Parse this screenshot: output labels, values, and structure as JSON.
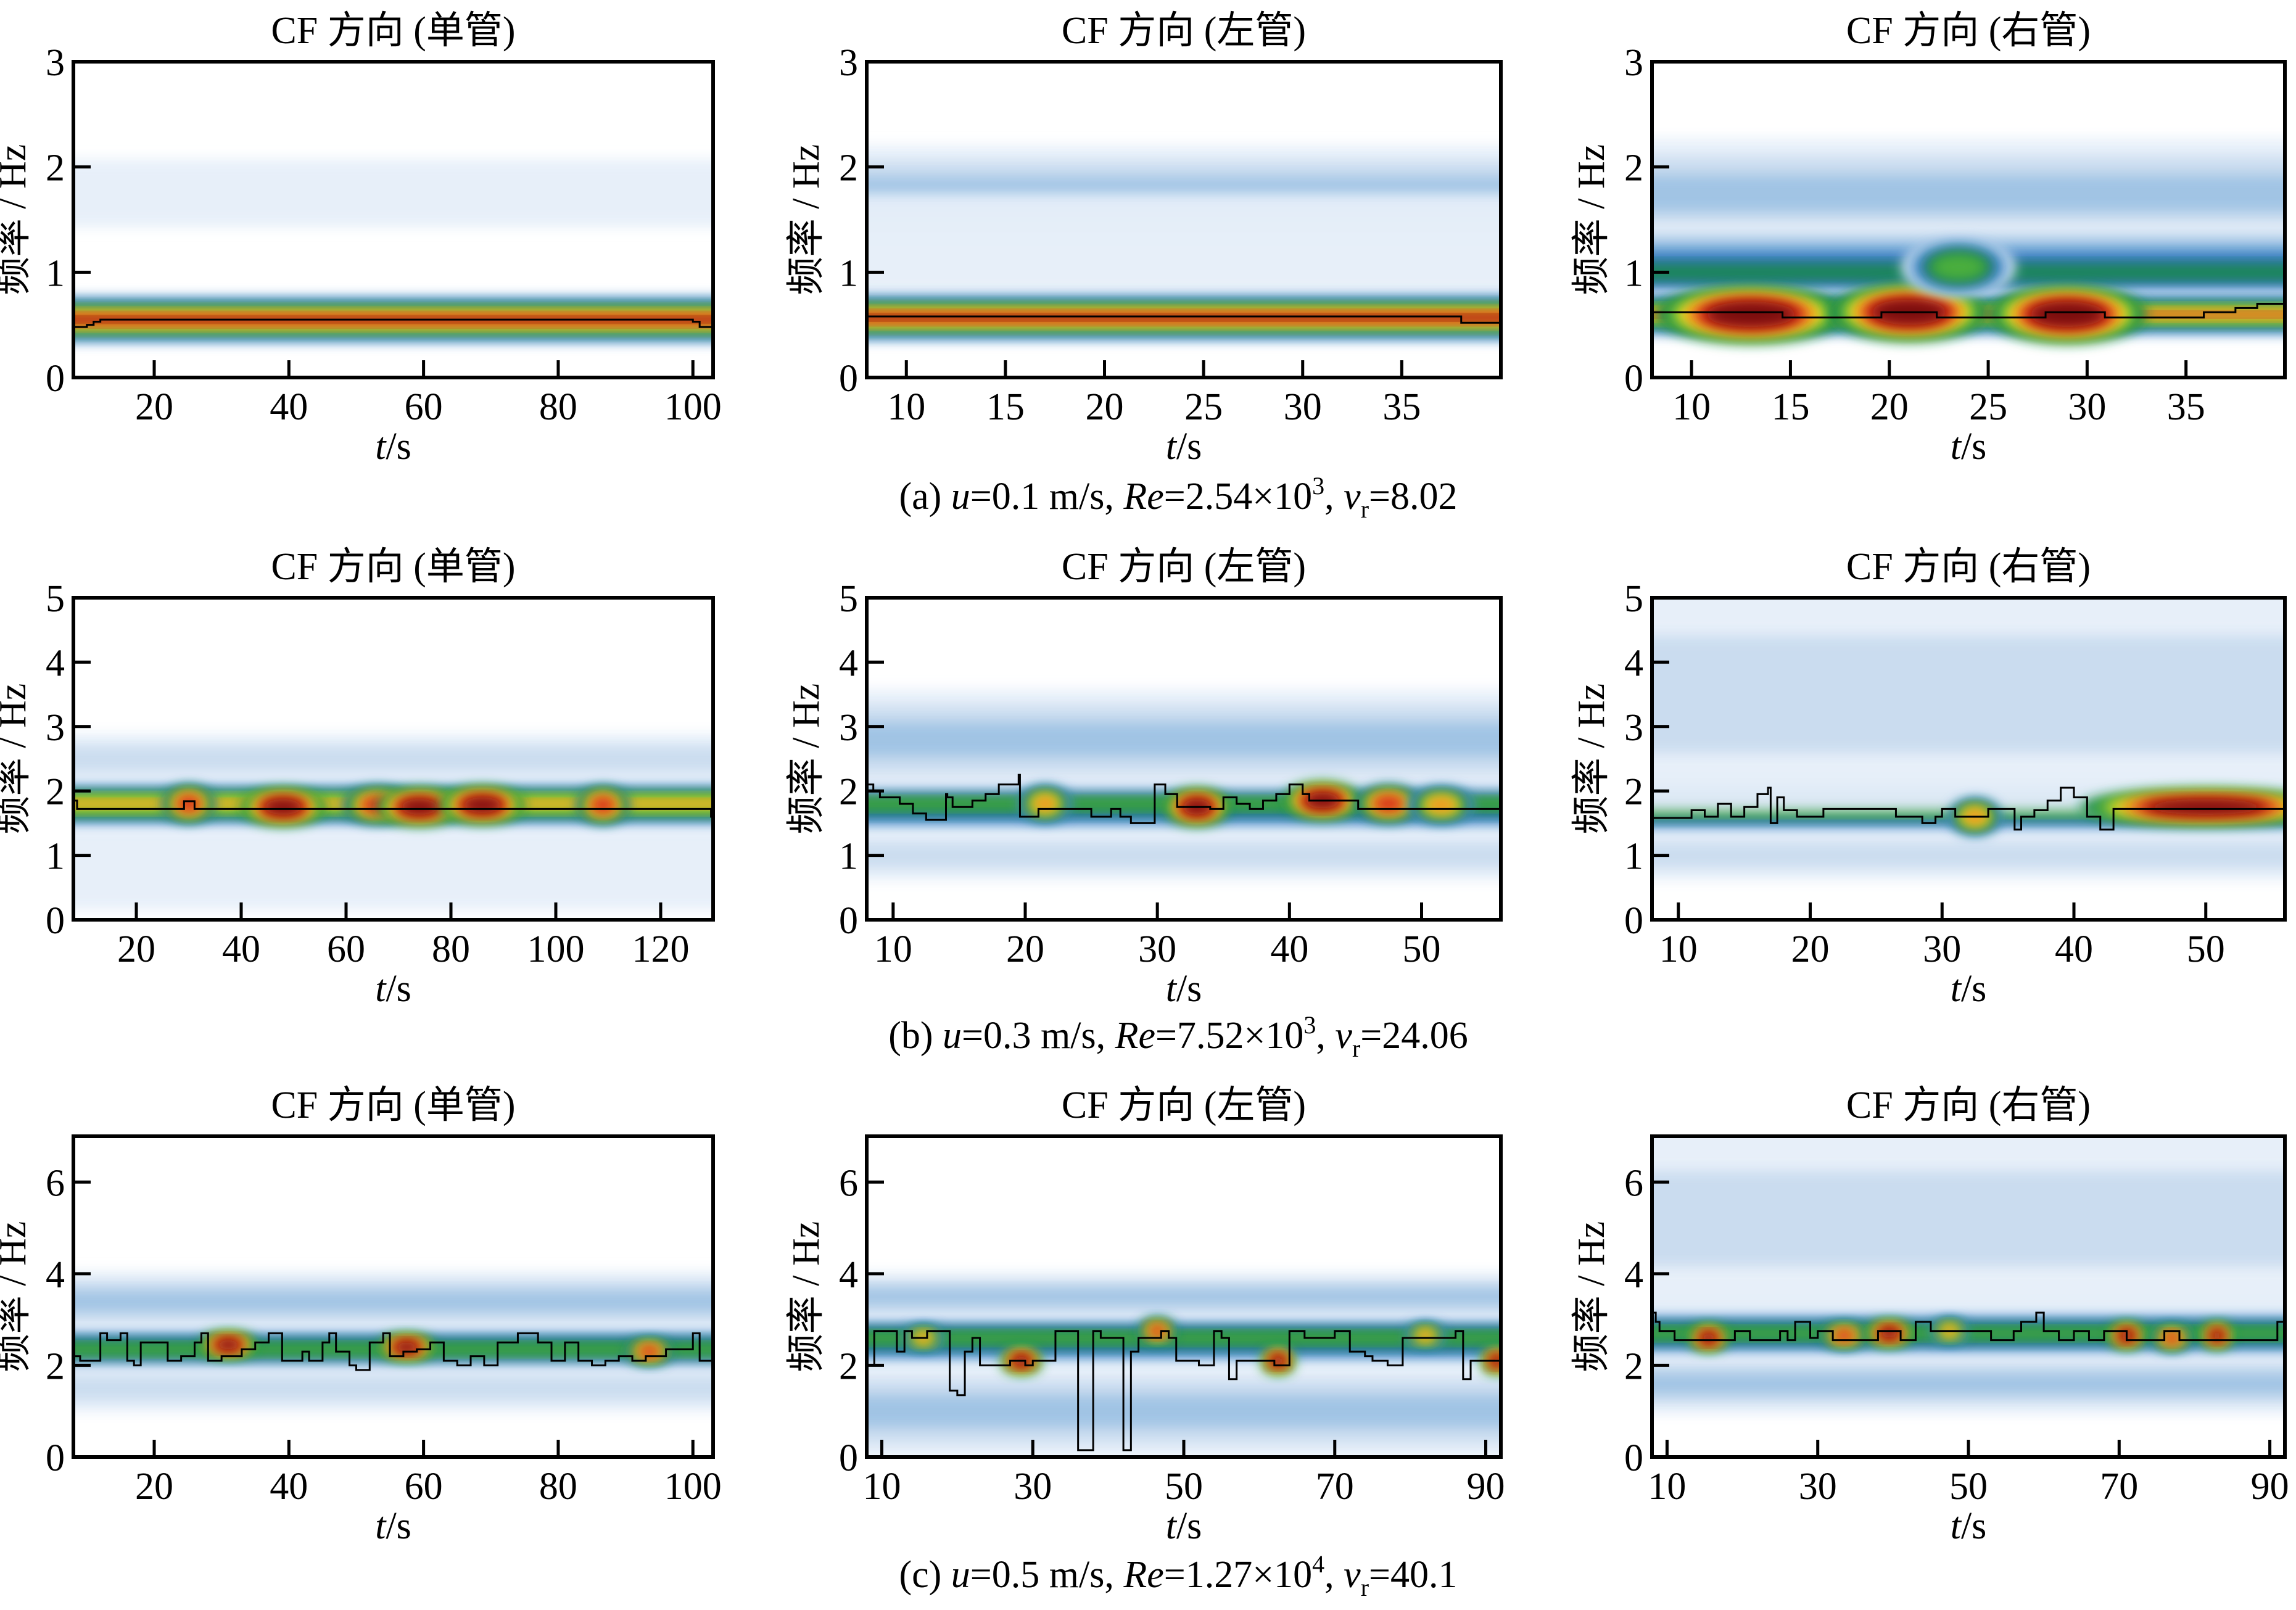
{
  "figure": {
    "rows": [
      {
        "caption": {
          "prefix": "(a) ",
          "u_label": "u",
          "u_value": "=0.1 m/s, ",
          "re_label": "Re",
          "re_value": "=2.54×10",
          "re_exp": "3",
          "sep": ", ",
          "vr_label": "v",
          "vr_sub": "r",
          "vr_value": "=8.02"
        }
      },
      {
        "caption": {
          "prefix": "(b) ",
          "u_label": "u",
          "u_value": "=0.3 m/s, ",
          "re_label": "Re",
          "re_value": "=7.52×10",
          "re_exp": "3",
          "sep": ", ",
          "vr_label": "v",
          "vr_sub": "r",
          "vr_value": "=24.06"
        }
      },
      {
        "caption": {
          "prefix": "(c) ",
          "u_label": "u",
          "u_value": "=0.5 m/s, ",
          "re_label": "Re",
          "re_value": "=1.27×10",
          "re_exp": "4",
          "sep": ", ",
          "vr_label": "v",
          "vr_sub": "r",
          "vr_value": "=40.1"
        }
      }
    ],
    "colormap": [
      "#ffffff",
      "#e6eff9",
      "#c9dcef",
      "#9fc3e4",
      "#5b9ad0",
      "#2a6fb4",
      "#1e8a4a",
      "#4caf3c",
      "#e8e020",
      "#f09020",
      "#d42a1a",
      "#7a1010"
    ],
    "ridge_color": "#000000"
  },
  "chart_data": [
    {
      "type": "heatmap",
      "row": 0,
      "col": 0,
      "title": "CF 方向 (单管)",
      "xlabel_italic": "t",
      "xlabel_rest": "/s",
      "ylabel": "频率 / Hz",
      "xlim": [
        8,
        103
      ],
      "ylim": [
        0,
        3
      ],
      "xticks": [
        20,
        40,
        60,
        80,
        100
      ],
      "yticks": [
        0,
        1,
        2,
        3
      ],
      "bands": [
        {
          "f": 1.75,
          "width": 0.25,
          "intensity": 0.12
        },
        {
          "f": 0.55,
          "width": 0.18,
          "intensity": 1.0
        }
      ],
      "hotspots": [],
      "ridge": {
        "t": [
          8,
          10,
          11,
          12,
          100,
          101,
          103
        ],
        "f": [
          0.48,
          0.5,
          0.53,
          0.55,
          0.53,
          0.48,
          0.48
        ]
      }
    },
    {
      "type": "heatmap",
      "row": 0,
      "col": 1,
      "title": "CF 方向 (左管)",
      "xlabel_italic": "t",
      "xlabel_rest": "/s",
      "ylabel": "频率 / Hz",
      "xlim": [
        8,
        40
      ],
      "ylim": [
        0,
        3
      ],
      "xticks": [
        10,
        15,
        20,
        25,
        30,
        35
      ],
      "yticks": [
        0,
        1,
        2,
        3
      ],
      "bands": [
        {
          "f": 1.75,
          "width": 0.35,
          "intensity": 0.3
        },
        {
          "f": 1.1,
          "width": 0.5,
          "intensity": 0.12
        },
        {
          "f": 0.57,
          "width": 0.18,
          "intensity": 1.0
        }
      ],
      "hotspots": [],
      "ridge": {
        "t": [
          8,
          37.9,
          38,
          40
        ],
        "f": [
          0.58,
          0.58,
          0.52,
          0.52
        ]
      }
    },
    {
      "type": "heatmap",
      "row": 0,
      "col": 2,
      "title": "CF 方向 (右管)",
      "xlabel_italic": "t",
      "xlabel_rest": "/s",
      "ylabel": "频率 / Hz",
      "xlim": [
        8,
        40
      ],
      "ylim": [
        0,
        3
      ],
      "xticks": [
        10,
        15,
        20,
        25,
        30,
        35
      ],
      "yticks": [
        0,
        1,
        2,
        3
      ],
      "bands": [
        {
          "f": 1.75,
          "width": 0.4,
          "intensity": 0.3
        },
        {
          "f": 1.0,
          "width": 0.35,
          "intensity": 0.5
        },
        {
          "f": 0.6,
          "width": 0.16,
          "intensity": 0.9
        }
      ],
      "hotspots": [
        {
          "t": 13,
          "f": 0.6,
          "r": 3,
          "intensity": 1.0
        },
        {
          "t": 21,
          "f": 0.62,
          "r": 2.5,
          "intensity": 1.0
        },
        {
          "t": 29,
          "f": 0.6,
          "r": 2.5,
          "intensity": 1.0
        },
        {
          "t": 23.5,
          "f": 1.05,
          "r": 1.8,
          "intensity": 0.62
        }
      ],
      "ridge": {
        "t": [
          8,
          14.5,
          14.6,
          19.5,
          19.6,
          22.3,
          22.4,
          27.8,
          27.9,
          30.8,
          30.9,
          35.8,
          35.9,
          37.4,
          37.5,
          38.5,
          38.6,
          40
        ],
        "f": [
          0.62,
          0.62,
          0.57,
          0.57,
          0.62,
          0.62,
          0.57,
          0.57,
          0.62,
          0.62,
          0.57,
          0.57,
          0.62,
          0.62,
          0.66,
          0.66,
          0.7,
          0.7
        ]
      }
    },
    {
      "type": "heatmap",
      "row": 1,
      "col": 0,
      "title": "CF 方向 (单管)",
      "xlabel_italic": "t",
      "xlabel_rest": "/s",
      "ylabel": "频率 / Hz",
      "xlim": [
        8,
        130
      ],
      "ylim": [
        0,
        5
      ],
      "xticks": [
        20,
        40,
        60,
        80,
        100,
        120
      ],
      "yticks": [
        0,
        1,
        2,
        3,
        4,
        5
      ],
      "bands": [
        {
          "f": 1.8,
          "width": 0.35,
          "intensity": 0.78
        },
        {
          "f": 2.5,
          "width": 0.3,
          "intensity": 0.15
        },
        {
          "f": 0.8,
          "width": 0.5,
          "intensity": 0.1
        }
      ],
      "hotspots": [
        {
          "t": 30,
          "f": 1.8,
          "r": 3,
          "intensity": 0.95
        },
        {
          "t": 48,
          "f": 1.75,
          "r": 5,
          "intensity": 1.0
        },
        {
          "t": 66,
          "f": 1.78,
          "r": 4,
          "intensity": 0.95
        },
        {
          "t": 74,
          "f": 1.75,
          "r": 5,
          "intensity": 1.0
        },
        {
          "t": 86,
          "f": 1.78,
          "r": 5,
          "intensity": 1.0
        },
        {
          "t": 109,
          "f": 1.78,
          "r": 3,
          "intensity": 0.95
        }
      ],
      "ridge": {
        "t": [
          8,
          8.6,
          8.7,
          29,
          29.1,
          31,
          31.1,
          129.5,
          129.6,
          130
        ],
        "f": [
          1.85,
          1.85,
          1.72,
          1.72,
          1.84,
          1.84,
          1.72,
          1.72,
          1.6,
          1.6
        ]
      }
    },
    {
      "type": "heatmap",
      "row": 1,
      "col": 1,
      "title": "CF 方向 (左管)",
      "xlabel_italic": "t",
      "xlabel_rest": "/s",
      "ylabel": "频率 / Hz",
      "xlim": [
        8,
        56
      ],
      "ylim": [
        0,
        5
      ],
      "xticks": [
        10,
        20,
        30,
        40,
        50
      ],
      "yticks": [
        0,
        1,
        2,
        3,
        4,
        5
      ],
      "bands": [
        {
          "f": 1.8,
          "width": 0.4,
          "intensity": 0.65
        },
        {
          "f": 2.8,
          "width": 0.6,
          "intensity": 0.3
        },
        {
          "f": 1.0,
          "width": 0.3,
          "intensity": 0.2
        }
      ],
      "hotspots": [
        {
          "t": 33,
          "f": 1.75,
          "r": 1.5,
          "intensity": 1.0
        },
        {
          "t": 42.5,
          "f": 1.85,
          "r": 1.8,
          "intensity": 1.0
        },
        {
          "t": 47.5,
          "f": 1.8,
          "r": 1.5,
          "intensity": 0.9
        },
        {
          "t": 21.5,
          "f": 1.8,
          "r": 1.2,
          "intensity": 0.8
        },
        {
          "t": 51.5,
          "f": 1.78,
          "r": 1.5,
          "intensity": 0.78
        }
      ],
      "ridge": {
        "t": [
          8,
          8.5,
          9,
          10.5,
          11.5,
          12.5,
          14,
          14.1,
          14.5,
          16,
          17,
          18,
          19.5,
          19.6,
          21,
          25,
          26.5,
          27.2,
          28,
          29,
          29.8,
          30.6,
          31.5,
          34,
          35,
          36,
          37,
          38,
          39,
          40,
          41,
          41.5,
          45,
          45.2,
          55.5,
          56
        ],
        "f": [
          2.1,
          2.0,
          1.9,
          1.8,
          1.65,
          1.55,
          1.95,
          1.9,
          1.75,
          1.85,
          1.95,
          2.1,
          2.25,
          1.6,
          1.72,
          1.6,
          1.72,
          1.6,
          1.5,
          1.5,
          2.1,
          1.95,
          1.75,
          1.72,
          1.9,
          1.8,
          1.72,
          1.85,
          1.95,
          2.1,
          1.95,
          1.85,
          1.85,
          1.72,
          1.72,
          1.6
        ]
      }
    },
    {
      "type": "heatmap",
      "row": 1,
      "col": 2,
      "title": "CF 方向 (右管)",
      "xlabel_italic": "t",
      "xlabel_rest": "/s",
      "ylabel": "频率 / Hz",
      "xlim": [
        8,
        56
      ],
      "ylim": [
        0,
        5
      ],
      "xticks": [
        10,
        20,
        30,
        40,
        50
      ],
      "yticks": [
        0,
        1,
        2,
        3,
        4,
        5
      ],
      "bands": [
        {
          "f": 1.7,
          "width": 0.38,
          "intensity": 0.65
        },
        {
          "f": 3.5,
          "width": 1.4,
          "intensity": 0.2
        },
        {
          "f": 1.0,
          "width": 0.3,
          "intensity": 0.2
        }
      ],
      "hotspots": [
        {
          "t": 50,
          "f": 1.75,
          "r": 6,
          "intensity": 1.0
        },
        {
          "t": 32.5,
          "f": 1.6,
          "r": 1.2,
          "intensity": 0.8
        }
      ],
      "ridge": {
        "t": [
          8,
          11,
          12,
          13,
          14,
          15,
          16,
          16.8,
          17,
          17.5,
          18,
          19,
          21,
          26.5,
          28.5,
          29.5,
          30,
          31,
          33.5,
          35.5,
          36,
          37,
          38,
          39,
          40,
          41,
          42,
          43,
          56
        ],
        "f": [
          1.58,
          1.7,
          1.6,
          1.8,
          1.6,
          1.75,
          1.95,
          2.05,
          1.5,
          1.9,
          1.7,
          1.6,
          1.72,
          1.6,
          1.5,
          1.6,
          1.72,
          1.6,
          1.72,
          1.4,
          1.6,
          1.7,
          1.85,
          2.05,
          1.9,
          1.6,
          1.4,
          1.72,
          1.72
        ]
      }
    },
    {
      "type": "heatmap",
      "row": 2,
      "col": 0,
      "title": "CF 方向 (单管)",
      "xlabel_italic": "t",
      "xlabel_rest": "/s",
      "ylabel": "频率 / Hz",
      "xlim": [
        8,
        103
      ],
      "ylim": [
        0,
        7
      ],
      "xticks": [
        20,
        40,
        60,
        80,
        100
      ],
      "yticks": [
        0,
        2,
        4,
        6
      ],
      "bands": [
        {
          "f": 2.35,
          "width": 0.55,
          "intensity": 0.6
        },
        {
          "f": 3.4,
          "width": 0.5,
          "intensity": 0.3
        },
        {
          "f": 1.5,
          "width": 0.4,
          "intensity": 0.2
        }
      ],
      "hotspots": [
        {
          "t": 31,
          "f": 2.45,
          "r": 2.5,
          "intensity": 1.0
        },
        {
          "t": 57.5,
          "f": 2.4,
          "r": 2.5,
          "intensity": 1.0
        },
        {
          "t": 93.5,
          "f": 2.3,
          "r": 2,
          "intensity": 0.95
        }
      ],
      "ridge": {
        "t": [
          8,
          9,
          12,
          13,
          15,
          16,
          17,
          18,
          22,
          24,
          26,
          27,
          28,
          30,
          33,
          35,
          37,
          39,
          42,
          43,
          45,
          46,
          47,
          49,
          50,
          52,
          54,
          55,
          57,
          59,
          61,
          63,
          65,
          67,
          69,
          71,
          74,
          77,
          79,
          81,
          83,
          85,
          87,
          89,
          91,
          93,
          96,
          100,
          101,
          103
        ],
        "f": [
          2.2,
          2.1,
          2.7,
          2.55,
          2.7,
          2.1,
          2.0,
          2.5,
          2.1,
          2.2,
          2.5,
          2.7,
          2.1,
          2.2,
          2.35,
          2.5,
          2.7,
          2.1,
          2.3,
          2.1,
          2.5,
          2.7,
          2.3,
          2.0,
          1.9,
          2.5,
          2.7,
          2.2,
          2.3,
          2.35,
          2.5,
          2.1,
          2.0,
          2.2,
          2.0,
          2.5,
          2.7,
          2.5,
          2.1,
          2.5,
          2.1,
          2.0,
          2.1,
          2.2,
          2.1,
          2.2,
          2.35,
          2.7,
          2.1,
          2.1
        ]
      }
    },
    {
      "type": "heatmap",
      "row": 2,
      "col": 1,
      "title": "CF 方向 (左管)",
      "xlabel_italic": "t",
      "xlabel_rest": "/s",
      "ylabel": "频率 / Hz",
      "xlim": [
        8,
        92
      ],
      "ylim": [
        0,
        7
      ],
      "xticks": [
        10,
        30,
        50,
        70,
        90
      ],
      "yticks": [
        0,
        2,
        4,
        6
      ],
      "bands": [
        {
          "f": 2.6,
          "width": 0.55,
          "intensity": 0.6
        },
        {
          "f": 3.5,
          "width": 0.4,
          "intensity": 0.3
        },
        {
          "f": 1.0,
          "width": 0.8,
          "intensity": 0.3
        }
      ],
      "hotspots": [
        {
          "t": 15.5,
          "f": 2.6,
          "r": 1.5,
          "intensity": 0.85
        },
        {
          "t": 28.5,
          "f": 2.1,
          "r": 1.6,
          "intensity": 1.0
        },
        {
          "t": 46.5,
          "f": 2.75,
          "r": 1.4,
          "intensity": 0.95
        },
        {
          "t": 62.5,
          "f": 2.1,
          "r": 1.3,
          "intensity": 1.0
        },
        {
          "t": 82,
          "f": 2.65,
          "r": 1.5,
          "intensity": 0.8
        },
        {
          "t": 91.5,
          "f": 2.1,
          "r": 1.2,
          "intensity": 0.98
        }
      ],
      "ridge": {
        "t": [
          8,
          9,
          11,
          12,
          13,
          14,
          16,
          18,
          19,
          20,
          21,
          22,
          23,
          27,
          29,
          30,
          33,
          35.5,
          36,
          37,
          38,
          39,
          41.5,
          42,
          43,
          44,
          47,
          48,
          49,
          52,
          54,
          55,
          56,
          57,
          60,
          62,
          64,
          66,
          70,
          72,
          74,
          75,
          77,
          79,
          85,
          86,
          87,
          88,
          91,
          92
        ],
        "f": [
          2.0,
          2.75,
          2.75,
          2.3,
          2.75,
          2.6,
          2.75,
          2.75,
          1.45,
          1.35,
          2.3,
          2.6,
          2.0,
          2.1,
          2.0,
          2.1,
          2.75,
          2.75,
          0.15,
          0.15,
          2.75,
          2.6,
          2.6,
          0.15,
          2.3,
          2.6,
          2.75,
          2.6,
          2.1,
          2.0,
          2.75,
          2.6,
          1.7,
          2.1,
          2.1,
          2.0,
          2.75,
          2.6,
          2.75,
          2.3,
          2.2,
          2.1,
          2.0,
          2.6,
          2.6,
          2.75,
          1.7,
          2.1,
          2.1,
          2.1
        ]
      }
    },
    {
      "type": "heatmap",
      "row": 2,
      "col": 2,
      "title": "CF 方向 (右管)",
      "xlabel_italic": "t",
      "xlabel_rest": "/s",
      "ylabel": "频率 / Hz",
      "xlim": [
        8,
        92
      ],
      "ylim": [
        0,
        7
      ],
      "xticks": [
        10,
        30,
        50,
        70,
        90
      ],
      "yticks": [
        0,
        2,
        4,
        6
      ],
      "bands": [
        {
          "f": 2.7,
          "width": 0.55,
          "intensity": 0.62
        },
        {
          "f": 5.2,
          "width": 1.6,
          "intensity": 0.22
        },
        {
          "f": 1.6,
          "width": 0.5,
          "intensity": 0.25
        }
      ],
      "hotspots": [
        {
          "t": 15.5,
          "f": 2.6,
          "r": 1.5,
          "intensity": 1.0
        },
        {
          "t": 33.5,
          "f": 2.65,
          "r": 1.8,
          "intensity": 0.95
        },
        {
          "t": 39.5,
          "f": 2.7,
          "r": 1.8,
          "intensity": 1.0
        },
        {
          "t": 47.5,
          "f": 2.75,
          "r": 1.4,
          "intensity": 0.82
        },
        {
          "t": 71,
          "f": 2.65,
          "r": 1.4,
          "intensity": 1.0
        },
        {
          "t": 77,
          "f": 2.6,
          "r": 1.5,
          "intensity": 0.95
        },
        {
          "t": 83,
          "f": 2.65,
          "r": 1.2,
          "intensity": 0.98
        }
      ],
      "ridge": {
        "t": [
          8,
          8.5,
          9,
          11,
          19,
          21,
          25,
          26,
          27,
          29,
          30,
          32,
          38,
          41,
          43,
          45,
          53,
          56,
          57,
          59,
          60,
          62,
          64,
          66,
          68,
          71,
          76,
          78,
          88,
          91,
          92
        ],
        "f": [
          3.15,
          2.95,
          2.75,
          2.55,
          2.75,
          2.55,
          2.75,
          2.55,
          2.95,
          2.6,
          2.75,
          2.55,
          2.75,
          2.55,
          2.95,
          2.75,
          2.55,
          2.75,
          2.95,
          3.15,
          2.75,
          2.55,
          2.75,
          2.55,
          2.75,
          2.55,
          2.75,
          2.55,
          2.55,
          2.95,
          2.1
        ]
      }
    }
  ]
}
